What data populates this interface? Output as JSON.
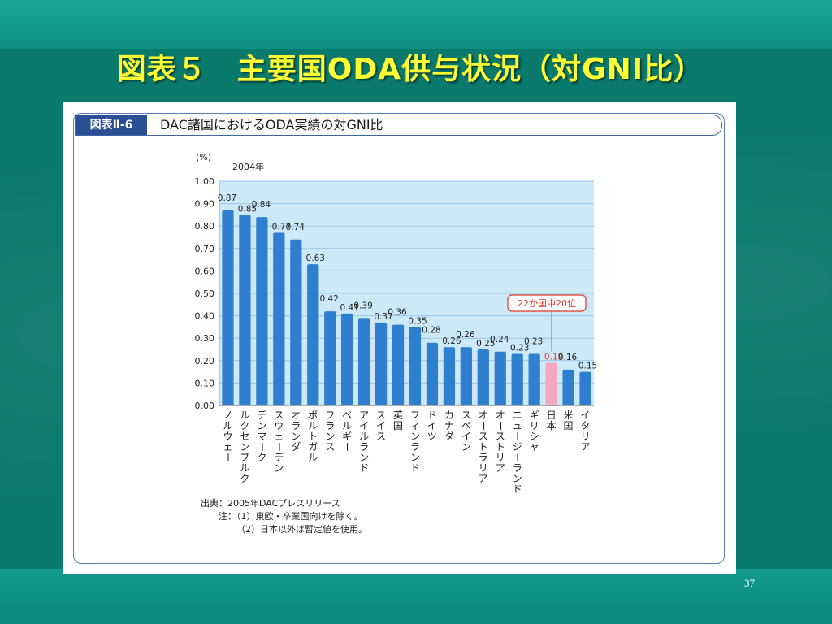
{
  "slide": {
    "title": "図表５　主要国ODA供与状況（対GNI比）",
    "page_number": "37"
  },
  "figure": {
    "tag": "図表Ⅱ-6",
    "title": "DAC諸国におけるODA実績の対GNI比"
  },
  "chart_data": {
    "type": "bar",
    "ylabel": "(%)",
    "year_label": "2004年",
    "ylim": [
      0,
      1.0
    ],
    "yticks": [
      "0.00",
      "0.10",
      "0.20",
      "0.30",
      "0.40",
      "0.50",
      "0.60",
      "0.70",
      "0.80",
      "0.90",
      "1.00"
    ],
    "categories": [
      "ノルウェー",
      "ルクセンブルク",
      "デンマーク",
      "スウェーデン",
      "オランダ",
      "ポルトガル",
      "フランス",
      "ベルギー",
      "アイルランド",
      "スイス",
      "英国",
      "フィンランド",
      "ドイツ",
      "カナダ",
      "スペイン",
      "オーストラリア",
      "オーストリア",
      "ニュージーランド",
      "ギリシャ",
      "日本",
      "米国",
      "イタリア"
    ],
    "values": [
      0.87,
      0.85,
      0.84,
      0.77,
      0.74,
      0.63,
      0.42,
      0.41,
      0.39,
      0.37,
      0.36,
      0.35,
      0.28,
      0.26,
      0.26,
      0.25,
      0.24,
      0.23,
      0.23,
      0.19,
      0.16,
      0.15
    ],
    "value_labels": [
      "0.87",
      "0.85",
      "0.84",
      "0.77",
      "0.74",
      "0.63",
      "0.42",
      "0.41",
      "0.39",
      "0.37",
      "0.36",
      "0.35",
      "0.28",
      "0.26",
      "0.26",
      "0.25",
      "0.24",
      "0.23",
      "0.23",
      "0.19",
      "0.16",
      "0.15"
    ],
    "highlight_index": 19,
    "annotation": "22か国中20位",
    "colors": {
      "bar": "#2f7fd0",
      "bar_highlight": "#f4a7be",
      "highlight_label": "#e2352c",
      "plot_bg": "#cde9f8",
      "annotation_border": "#e2352c"
    }
  },
  "notes": {
    "source": "出典：2005年DACプレスリリース",
    "note1": "注：（1）東欧・卒業国向けを除く。",
    "note2": "（2）日本以外は暫定値を使用。"
  }
}
